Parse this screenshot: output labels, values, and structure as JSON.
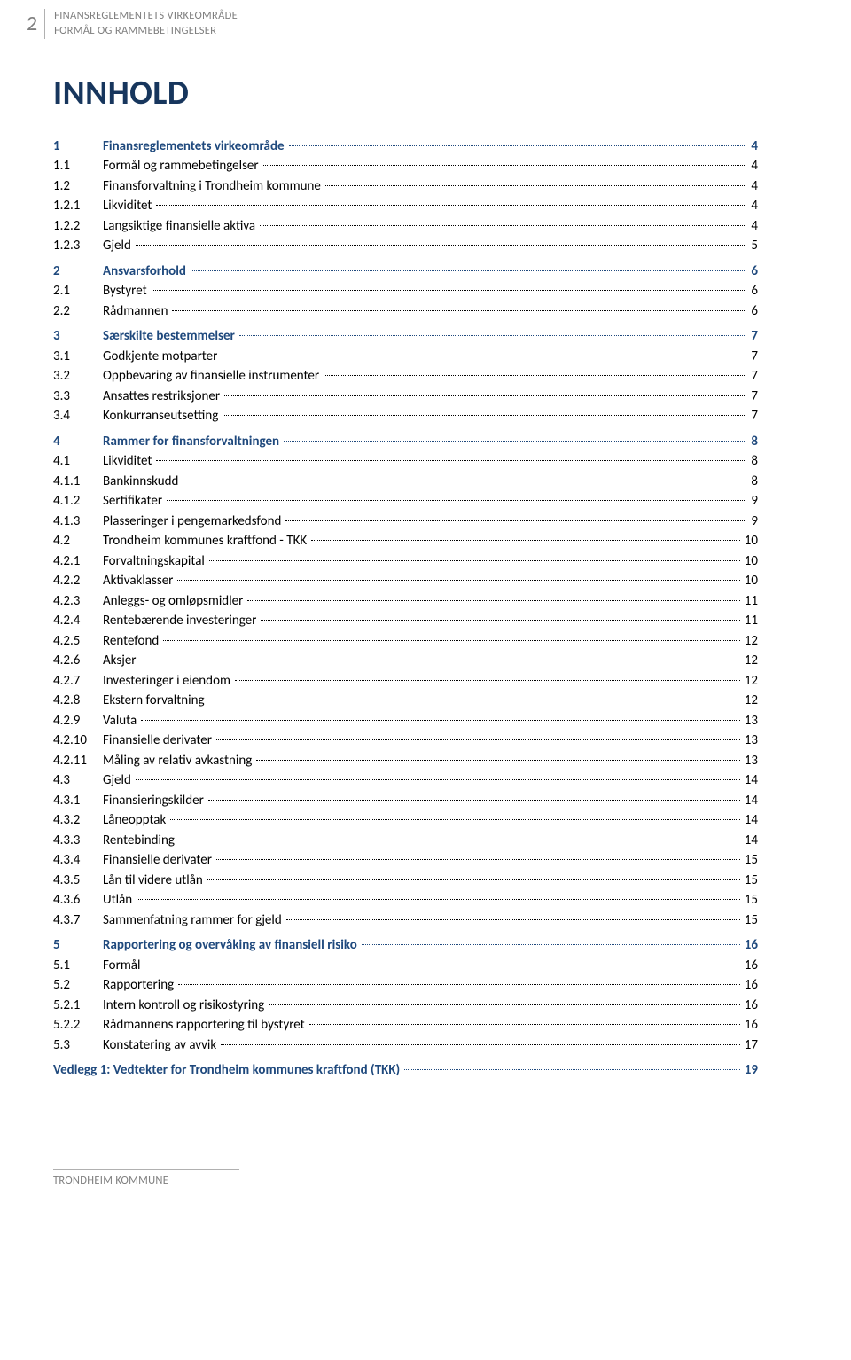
{
  "header": {
    "page_number": "2",
    "line1": "FINANSREGLEMENTETS VIRKEOMRÅDE",
    "line2": "FORMÅL OG RAMMEBETINGELSER"
  },
  "title": "INNHOLD",
  "toc": [
    {
      "lvl": 1,
      "num": "1",
      "label": "Finansreglementets virkeområde",
      "page": "4",
      "spaced": false
    },
    {
      "lvl": 2,
      "num": "1.1",
      "label": "Formål og rammebetingelser",
      "page": "4"
    },
    {
      "lvl": 2,
      "num": "1.2",
      "label": "Finansforvaltning i Trondheim kommune",
      "page": "4"
    },
    {
      "lvl": 3,
      "num": "1.2.1",
      "label": "Likviditet",
      "page": "4"
    },
    {
      "lvl": 3,
      "num": "1.2.2",
      "label": "Langsiktige finansielle aktiva",
      "page": "4"
    },
    {
      "lvl": 3,
      "num": "1.2.3",
      "label": "Gjeld",
      "page": "5"
    },
    {
      "lvl": 1,
      "num": "2",
      "label": "Ansvarsforhold",
      "page": "6",
      "spaced": true
    },
    {
      "lvl": 2,
      "num": "2.1",
      "label": "Bystyret",
      "page": "6"
    },
    {
      "lvl": 2,
      "num": "2.2",
      "label": "Rådmannen",
      "page": "6"
    },
    {
      "lvl": 1,
      "num": "3",
      "label": "Særskilte bestemmelser",
      "page": "7",
      "spaced": true
    },
    {
      "lvl": 2,
      "num": "3.1",
      "label": "Godkjente motparter",
      "page": "7"
    },
    {
      "lvl": 2,
      "num": "3.2",
      "label": "Oppbevaring av finansielle instrumenter",
      "page": "7"
    },
    {
      "lvl": 2,
      "num": "3.3",
      "label": "Ansattes restriksjoner",
      "page": "7"
    },
    {
      "lvl": 2,
      "num": "3.4",
      "label": "Konkurranseutsetting",
      "page": "7"
    },
    {
      "lvl": 1,
      "num": "4",
      "label": "Rammer for finansforvaltningen",
      "page": "8",
      "spaced": true
    },
    {
      "lvl": 2,
      "num": "4.1",
      "label": "Likviditet",
      "page": "8"
    },
    {
      "lvl": 3,
      "num": "4.1.1",
      "label": "Bankinnskudd",
      "page": "8"
    },
    {
      "lvl": 3,
      "num": "4.1.2",
      "label": "Sertifikater",
      "page": "9"
    },
    {
      "lvl": 3,
      "num": "4.1.3",
      "label": "Plasseringer i pengemarkedsfond",
      "page": "9"
    },
    {
      "lvl": 2,
      "num": "4.2",
      "label": "Trondheim kommunes kraftfond - TKK",
      "page": "10"
    },
    {
      "lvl": 3,
      "num": "4.2.1",
      "label": "Forvaltningskapital",
      "page": "10"
    },
    {
      "lvl": 3,
      "num": "4.2.2",
      "label": "Aktivaklasser",
      "page": "10"
    },
    {
      "lvl": 3,
      "num": "4.2.3",
      "label": "Anleggs- og omløpsmidler",
      "page": "11"
    },
    {
      "lvl": 3,
      "num": "4.2.4",
      "label": "Rentebærende investeringer",
      "page": "11"
    },
    {
      "lvl": 3,
      "num": "4.2.5",
      "label": "Rentefond",
      "page": "12"
    },
    {
      "lvl": 3,
      "num": "4.2.6",
      "label": "Aksjer",
      "page": "12"
    },
    {
      "lvl": 3,
      "num": "4.2.7",
      "label": "Investeringer i eiendom",
      "page": "12"
    },
    {
      "lvl": 3,
      "num": "4.2.8",
      "label": "Ekstern forvaltning",
      "page": "12"
    },
    {
      "lvl": 3,
      "num": "4.2.9",
      "label": "Valuta",
      "page": "13"
    },
    {
      "lvl": 3,
      "num": "4.2.10",
      "label": "Finansielle derivater",
      "page": "13"
    },
    {
      "lvl": 3,
      "num": "4.2.11",
      "label": "Måling av relativ avkastning",
      "page": "13"
    },
    {
      "lvl": 2,
      "num": "4.3",
      "label": "Gjeld",
      "page": "14"
    },
    {
      "lvl": 3,
      "num": "4.3.1",
      "label": "Finansieringskilder",
      "page": "14"
    },
    {
      "lvl": 3,
      "num": "4.3.2",
      "label": "Låneopptak",
      "page": "14"
    },
    {
      "lvl": 3,
      "num": "4.3.3",
      "label": "Rentebinding",
      "page": "14"
    },
    {
      "lvl": 3,
      "num": "4.3.4",
      "label": "Finansielle derivater",
      "page": "15"
    },
    {
      "lvl": 3,
      "num": "4.3.5",
      "label": "Lån til videre utlån",
      "page": "15"
    },
    {
      "lvl": 3,
      "num": "4.3.6",
      "label": "Utlån",
      "page": "15"
    },
    {
      "lvl": 3,
      "num": "4.3.7",
      "label": "Sammenfatning rammer for gjeld",
      "page": "15"
    },
    {
      "lvl": 1,
      "num": "5",
      "label": "Rapportering og overvåking av finansiell risiko",
      "page": "16",
      "spaced": true
    },
    {
      "lvl": 2,
      "num": "5.1",
      "label": "Formål",
      "page": "16"
    },
    {
      "lvl": 2,
      "num": "5.2",
      "label": "Rapportering",
      "page": "16"
    },
    {
      "lvl": 3,
      "num": "5.2.1",
      "label": "Intern kontroll og risikostyring",
      "page": "16"
    },
    {
      "lvl": 3,
      "num": "5.2.2",
      "label": "Rådmannens rapportering til bystyret",
      "page": "16"
    },
    {
      "lvl": 2,
      "num": "5.3",
      "label": "Konstatering av avvik",
      "page": "17"
    }
  ],
  "appendix": {
    "label": "Vedlegg 1: Vedtekter for Trondheim kommunes kraftfond (TKK)",
    "page": "19"
  },
  "footer": "TRONDHEIM KOMMUNE"
}
